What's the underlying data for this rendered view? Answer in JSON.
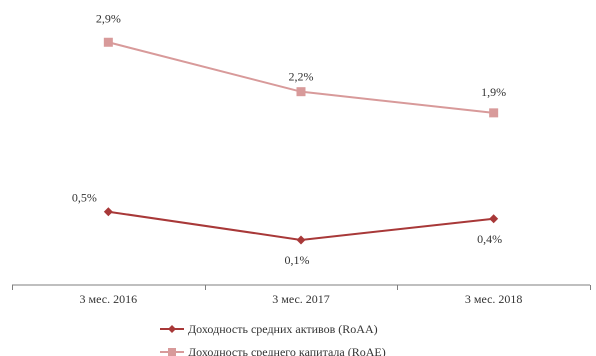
{
  "chart_data": {
    "type": "line",
    "categories": [
      "3 мес. 2016",
      "3 мес. 2017",
      "3 мес. 2018"
    ],
    "series": [
      {
        "name": "Доходность средних активов (RoAA)",
        "values": [
          0.5,
          0.1,
          0.4
        ],
        "labels": [
          "0,5%",
          "0,1%",
          "0,4%"
        ],
        "color": "#a83838",
        "marker": "diamond"
      },
      {
        "name": "Доходность среднего капитала (RoAE)",
        "values": [
          2.9,
          2.2,
          1.9
        ],
        "labels": [
          "2,9%",
          "2,2%",
          "1,9%"
        ],
        "color": "#d89a9a",
        "marker": "square"
      }
    ],
    "legend_position": "bottom",
    "grid": false
  }
}
